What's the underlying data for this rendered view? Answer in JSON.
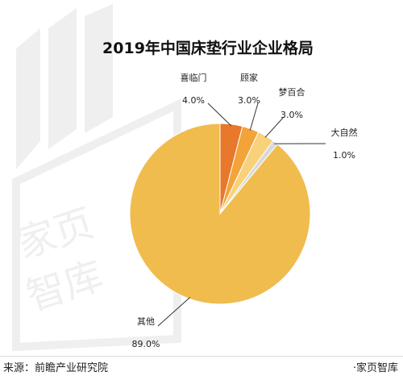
{
  "chart_data": {
    "type": "pie",
    "title": "2019年中国床垫行业企业格局",
    "slices": [
      {
        "label": "喜临门",
        "value": 4.0,
        "display": "4.0%",
        "color": "#E8782C"
      },
      {
        "label": "顾家",
        "value": 3.0,
        "display": "3.0%",
        "color": "#F2A33A"
      },
      {
        "label": "梦百合",
        "value": 3.0,
        "display": "3.0%",
        "color": "#F7D27A"
      },
      {
        "label": "大自然",
        "value": 1.0,
        "display": "1.0%",
        "color": "#D9D9D9"
      },
      {
        "label": "其他",
        "value": 89.0,
        "display": "89.0%",
        "color": "#F0BC4E"
      }
    ],
    "legend": "none",
    "start": "12 o'clock, clockwise"
  },
  "footer": {
    "source": "来源：前瞻产业研究院",
    "brand": "·家页智库"
  },
  "watermark": {
    "text_top": "家页",
    "text_bottom": "智库"
  }
}
